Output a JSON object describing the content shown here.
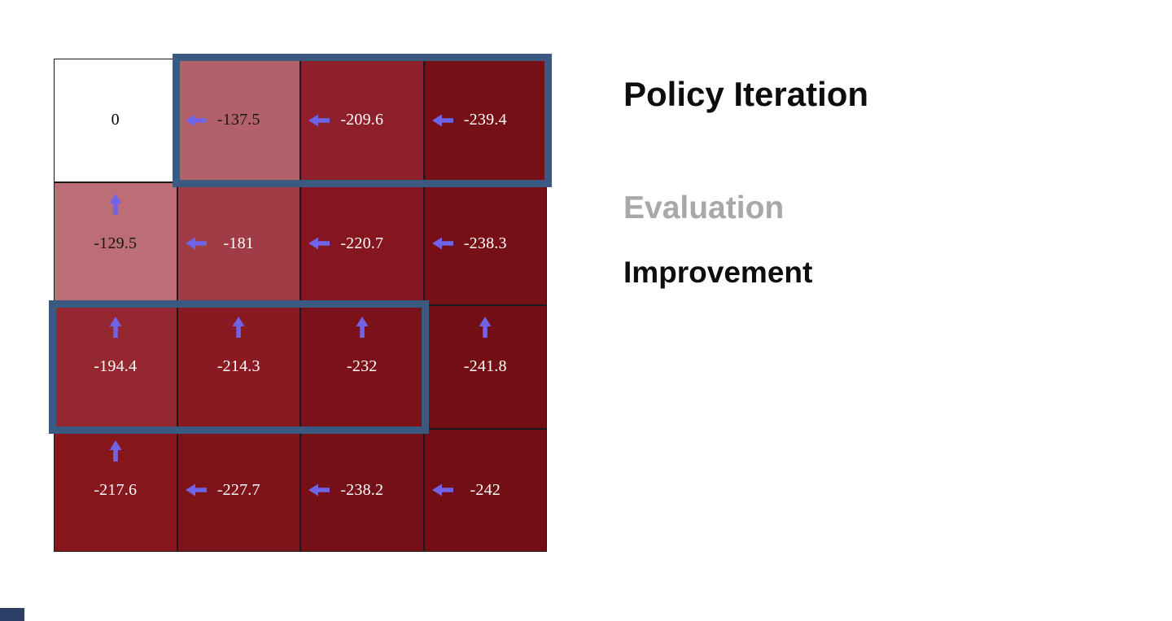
{
  "colors": {
    "arrow": "#7163e8",
    "highlight_border": "#3a5a82",
    "grid_line": "#1a1a1a"
  },
  "panel": {
    "title": "Policy Iteration",
    "steps": [
      {
        "label": "Evaluation",
        "state": "inactive",
        "color": "#a8a8a8"
      },
      {
        "label": "Improvement",
        "state": "active",
        "color": "#0d0d0d"
      }
    ]
  },
  "grid": {
    "rows": 4,
    "cols": 4,
    "cells": [
      [
        {
          "value": "0",
          "arrow": "none",
          "bg": "#ffffff",
          "fg": "#000000"
        },
        {
          "value": "-137.5",
          "arrow": "left",
          "bg": "#b2606a",
          "fg": "#161616"
        },
        {
          "value": "-209.6",
          "arrow": "left",
          "bg": "#8e202b",
          "fg": "#ffffff"
        },
        {
          "value": "-239.4",
          "arrow": "left",
          "bg": "#751016",
          "fg": "#ffffff"
        }
      ],
      [
        {
          "value": "-129.5",
          "arrow": "up",
          "bg": "#bd6d75",
          "fg": "#161616"
        },
        {
          "value": "-181",
          "arrow": "left",
          "bg": "#a03c46",
          "fg": "#ffffff"
        },
        {
          "value": "-220.7",
          "arrow": "left",
          "bg": "#85161f",
          "fg": "#ffffff"
        },
        {
          "value": "-238.3",
          "arrow": "left",
          "bg": "#761016",
          "fg": "#ffffff"
        }
      ],
      [
        {
          "value": "-194.4",
          "arrow": "up",
          "bg": "#942730",
          "fg": "#ffffff"
        },
        {
          "value": "-214.3",
          "arrow": "up",
          "bg": "#891a21",
          "fg": "#ffffff"
        },
        {
          "value": "-232",
          "arrow": "up",
          "bg": "#7c1219",
          "fg": "#ffffff"
        },
        {
          "value": "-241.8",
          "arrow": "up",
          "bg": "#731015",
          "fg": "#ffffff"
        }
      ],
      [
        {
          "value": "-217.6",
          "arrow": "up",
          "bg": "#87161d",
          "fg": "#ffffff"
        },
        {
          "value": "-227.7",
          "arrow": "left",
          "bg": "#7e1319",
          "fg": "#ffffff"
        },
        {
          "value": "-238.2",
          "arrow": "left",
          "bg": "#751016",
          "fg": "#ffffff"
        },
        {
          "value": "-242",
          "arrow": "left",
          "bg": "#720f14",
          "fg": "#ffffff"
        }
      ]
    ],
    "highlights": [
      {
        "name": "highlight-top-row-policy",
        "row": 0,
        "col_start": 1,
        "col_end": 3
      },
      {
        "name": "highlight-third-row-policy",
        "row": 2,
        "col_start": 0,
        "col_end": 2
      }
    ]
  }
}
